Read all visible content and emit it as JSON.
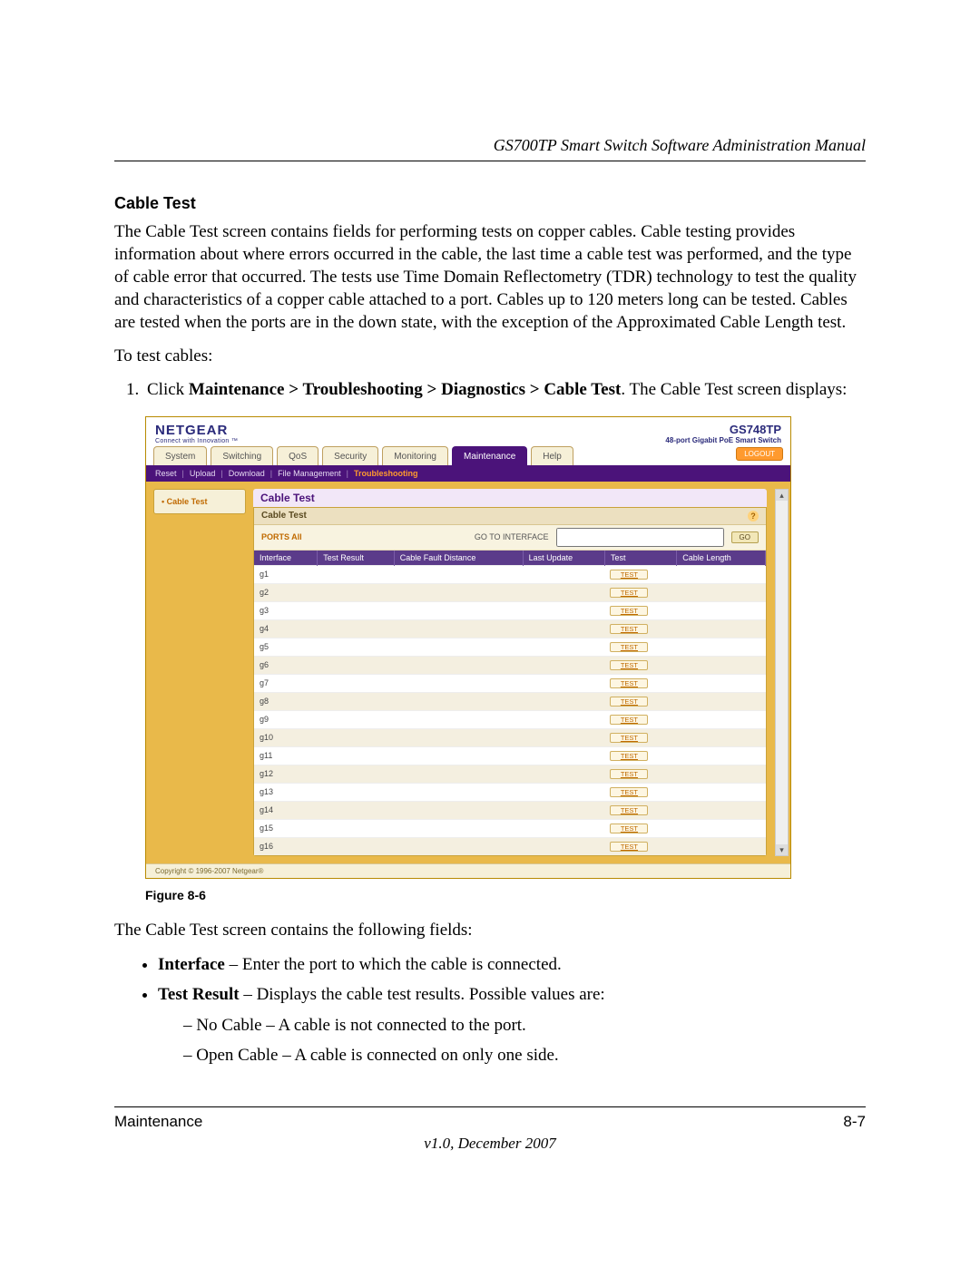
{
  "document": {
    "header": "GS700TP Smart Switch Software Administration Manual",
    "section_heading": "Cable Test",
    "intro": "The Cable Test screen contains fields for performing tests on copper cables. Cable testing provides information about where errors occurred in the cable, the last time a cable test was performed, and the type of cable error that occurred. The tests use Time Domain Reflectometry (TDR) technology to test the quality and characteristics of a copper cable attached to a port. Cables up to 120 meters long can be tested. Cables are tested when the ports are in the down state, with the exception of the Approximated Cable Length test.",
    "to_test": "To test cables:",
    "step_prefix": "Click ",
    "step_bold": "Maintenance > Troubleshooting > Diagnostics > Cable Test",
    "step_suffix": ". The Cable Test screen displays:",
    "figure_caption": "Figure 8-6",
    "after_figure": "The Cable Test screen contains the following fields:",
    "bullets": {
      "b1_bold": "Interface",
      "b1_rest": " – Enter the port to which the cable is connected.",
      "b2_bold": "Test Result",
      "b2_rest": " – Displays the cable test results. Possible values are:",
      "d1": "No Cable – A cable is not connected to the port.",
      "d2": "Open Cable – A cable is connected on only one side."
    },
    "footer_left": "Maintenance",
    "footer_right": "8-7",
    "footer_version": "v1.0, December 2007"
  },
  "screenshot": {
    "logo": "NETGEAR",
    "logo_sub": "Connect with Innovation ™",
    "product_model": "GS748TP",
    "product_desc": "48-port Gigabit PoE Smart Switch",
    "tabs": [
      "System",
      "Switching",
      "QoS",
      "Security",
      "Monitoring",
      "Maintenance",
      "Help"
    ],
    "active_tab_index": 5,
    "logout": "LOGOUT",
    "subnav": [
      "Reset",
      "Upload",
      "Download",
      "File Management",
      "Troubleshooting"
    ],
    "subnav_active_index": 4,
    "side_item": "• Cable Test",
    "panel_title": "Cable Test",
    "panel_subhead": "Cable Test",
    "ports_label": "PORTS All",
    "goto_label": "GO TO INTERFACE",
    "go_button": "GO",
    "columns": [
      "Interface",
      "Test Result",
      "Cable Fault Distance",
      "Last Update",
      "Test",
      "Cable Length"
    ],
    "rows": [
      "g1",
      "g2",
      "g3",
      "g4",
      "g5",
      "g6",
      "g7",
      "g8",
      "g9",
      "g10",
      "g11",
      "g12",
      "g13",
      "g14",
      "g15",
      "g16"
    ],
    "test_button": "TEST",
    "copyright": "Copyright © 1996-2007 Netgear®"
  },
  "colors": {
    "purple": "#4b137a",
    "orange": "#e9b94a",
    "link_orange": "#c06a00",
    "logo_blue": "#2a2a7a"
  }
}
